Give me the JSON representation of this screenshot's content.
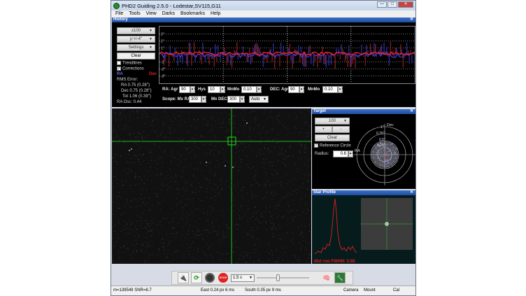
{
  "window": {
    "title": "PHD2 Guiding 2.5.0 - Lodestar,SV115,G11",
    "min": "—",
    "max": "□",
    "close": "✕"
  },
  "menu": [
    "File",
    "Tools",
    "View",
    "Darks",
    "Bookmarks",
    "Help"
  ],
  "history": {
    "header": "History",
    "scale_x": "x100",
    "scale_y": "y:+/-4''",
    "settings": "Settings",
    "clear": "Clear",
    "trendlines": "Trendlines",
    "trendlines_checked": false,
    "corrections": "Corrections",
    "corrections_checked": true,
    "ra_label": "RA",
    "dec_label": "Dec",
    "rms_title": "RMS Error:",
    "rms_ra": "RA 0.75 (0.28'')",
    "rms_dec": "Dec 0.75 (0.28'')",
    "rms_tot": "Tot 1.06 (0.39'')",
    "ra_osc": "RA Osc: 0.44",
    "y_ticks": [
      "3''",
      "2''",
      "1''",
      "-1''",
      "-2''",
      "-3''"
    ],
    "colors": {
      "ra": "#4a4aff",
      "dec": "#ff2020"
    }
  },
  "guide_params": {
    "ra_agr_label": "RA: Agr",
    "ra_agr": "90",
    "hys_label": "Hys",
    "hys": "10",
    "ra_minmo_label": "MnMo",
    "ra_minmo": "0.10",
    "dec_agr_label": "DEC: Agr",
    "dec_agr": "90",
    "dec_minmo_label": "MnMo",
    "dec_minmo": "0.10",
    "scope_mxra_label": "Scope: Mx RA",
    "mx_ra": "300",
    "mx_dec_label": "Mx DEC",
    "mx_dec": "300",
    "dec_mode": "Auto"
  },
  "target": {
    "header": "Target",
    "zoom": "100",
    "plus": "+",
    "minus": "-",
    "clear": "Clear",
    "ref_circle": "Reference Circle",
    "ref_checked": true,
    "radius_label": "Radius:",
    "radius": "0.6",
    "ring_labels": [
      "1''",
      "0.75''",
      "0.5''",
      "0.25''"
    ],
    "ra_axis": "RA",
    "dec_axis": "Dec"
  },
  "star_profile": {
    "header": "Star Profile",
    "fwhm": "Mid row FWHM: 0.98"
  },
  "toolbar": {
    "exposure": "1.5 s",
    "exposure_slider": 0.4
  },
  "status": {
    "star": "m=139549 SNR=8.7",
    "east": "East 0.24 px  6 ms",
    "south": "South 0.35 px 9 ms",
    "camera": "Camera",
    "mount": "Mount",
    "cal": "Cal"
  }
}
